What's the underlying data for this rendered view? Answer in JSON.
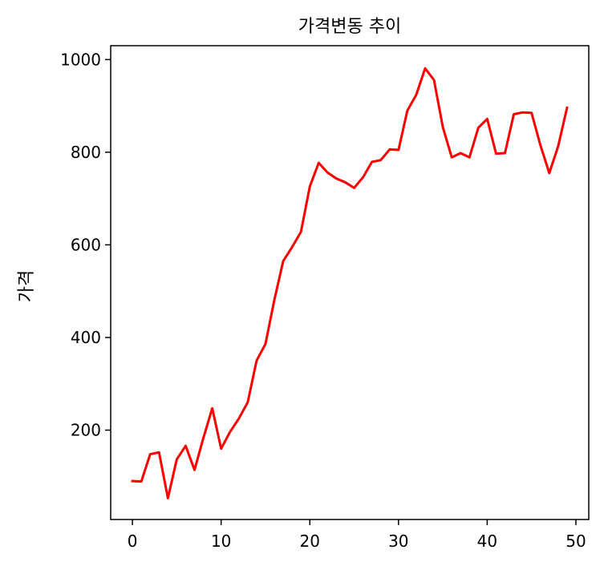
{
  "chart_data": {
    "type": "line",
    "title": "가격변동 추이",
    "xlabel": "",
    "ylabel": "가격",
    "xlim": [
      -2.45,
      51.45
    ],
    "ylim": [
      7,
      1030
    ],
    "x_ticks": [
      0,
      10,
      20,
      30,
      40,
      50
    ],
    "y_ticks": [
      200,
      400,
      600,
      800,
      1000
    ],
    "grid": false,
    "line_color": "#ff0000",
    "series": [
      {
        "x": [
          0,
          1,
          2,
          3,
          4,
          5,
          6,
          7,
          8,
          9,
          10,
          11,
          12,
          13,
          14,
          15,
          16,
          17,
          18,
          19,
          20,
          21,
          22,
          23,
          24,
          25,
          26,
          27,
          28,
          29,
          30,
          31,
          32,
          33,
          34,
          35,
          36,
          37,
          38,
          39,
          40,
          41,
          42,
          43,
          44,
          45,
          46,
          47,
          48,
          49
        ],
        "values": [
          90,
          89,
          148,
          152,
          53,
          137,
          166,
          114,
          183,
          247,
          160,
          196,
          225,
          260,
          350,
          386,
          481,
          565,
          595,
          628,
          726,
          777,
          756,
          743,
          735,
          723,
          746,
          779,
          783,
          806,
          805,
          890,
          924,
          981,
          956,
          854,
          789,
          798,
          789,
          853,
          872,
          797,
          798,
          882,
          886,
          885,
          815,
          755,
          813,
          896
        ]
      }
    ]
  }
}
